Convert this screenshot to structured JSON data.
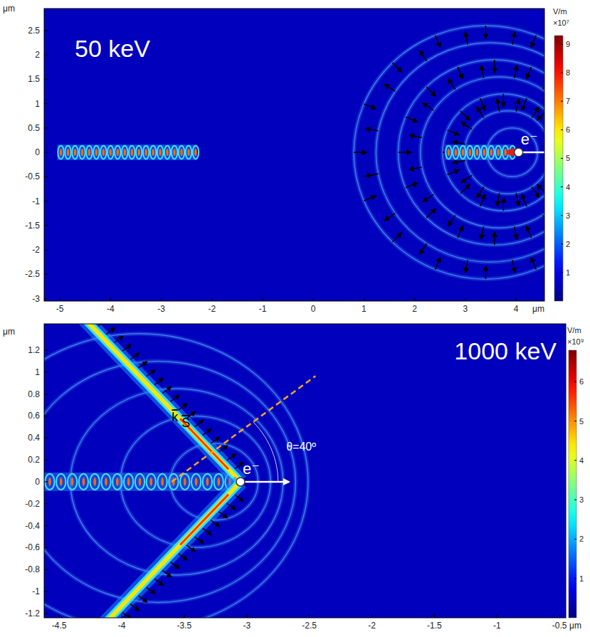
{
  "chart_data": [
    {
      "type": "field_map",
      "title": "50 keV",
      "x_label": "μm",
      "y_label": "μm",
      "xlim": [
        -5.31,
        4.56
      ],
      "xticks": [
        -5,
        -4,
        -3,
        -2,
        -1,
        0,
        1,
        2,
        3,
        4
      ],
      "ylim": [
        -3.05,
        2.95
      ],
      "yticks": [
        -3,
        -2.5,
        -2,
        -1.5,
        -1,
        -0.5,
        0,
        0.5,
        1,
        1.5,
        2,
        2.5
      ],
      "colorbar": {
        "label": "V/m",
        "scale_label": "×10⁷",
        "range": [
          0,
          9.3
        ],
        "ticks": [
          1,
          2,
          3,
          4,
          5,
          6,
          7,
          8,
          9
        ]
      },
      "electron": {
        "x": 4.05,
        "y": 0,
        "label": "e⁻"
      },
      "wake_segments": [
        [
          -5.05,
          -2.3
        ],
        [
          2.6,
          3.95
        ]
      ],
      "wake_period": 0.14,
      "ring_radii": [
        0.5,
        0.85,
        1.2,
        1.55,
        1.9,
        2.25,
        2.6
      ]
    },
    {
      "type": "field_map",
      "title": "1000 keV",
      "x_label": "μm",
      "y_label": "μm",
      "xlim": [
        -4.62,
        -0.45
      ],
      "xticks": [
        -4.5,
        -4,
        -3.5,
        -3,
        -2.5,
        -2,
        -1.5,
        -1,
        -0.5
      ],
      "ylim": [
        -1.24,
        1.44
      ],
      "yticks": [
        -1.2,
        -1,
        -0.8,
        -0.6,
        -0.4,
        -0.2,
        0,
        0.2,
        0.4,
        0.6,
        0.8,
        1,
        1.2
      ],
      "colorbar": {
        "label": "V/m",
        "scale_label": "×10⁹",
        "range": [
          0,
          6.8
        ],
        "ticks": [
          1,
          2,
          3,
          4,
          5,
          6
        ]
      },
      "electron": {
        "x": -3.05,
        "y": 0,
        "label": "e⁻"
      },
      "wake_segments": [
        [
          -4.62,
          -3.12
        ]
      ],
      "wake_period": 0.09,
      "ring_radii": [
        0.35,
        0.6,
        0.85,
        1.1,
        1.35
      ],
      "cone_angle": 40,
      "angle_label": "θ=40º",
      "k_label": "k",
      "s_label": "S"
    }
  ]
}
